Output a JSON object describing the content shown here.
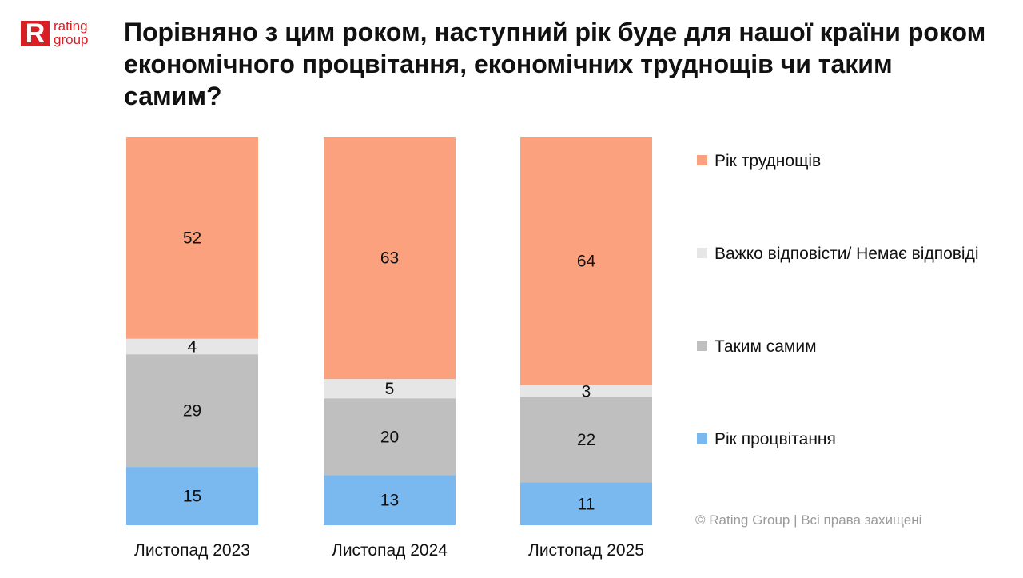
{
  "logo": {
    "mark": "R",
    "text": "rating\ngroup"
  },
  "title": "Порівняно з цим роком, наступний рік буде для нашої країни роком економічного процвітання, економічних труднощів чи таким самим?",
  "copyright": "© Rating Group | Всі права захищені",
  "chart_data": {
    "type": "bar",
    "stacked": true,
    "percent": true,
    "categories": [
      "Листопад 2023",
      "Листопад 2024",
      "Листопад 2025"
    ],
    "series": [
      {
        "name": "Рік процвітання",
        "color": "#7ab8f0",
        "values": [
          15,
          13,
          11
        ]
      },
      {
        "name": "Таким самим",
        "color": "#bfbfbf",
        "values": [
          29,
          20,
          22
        ]
      },
      {
        "name": "Важко відповісти/ Немає відповіді",
        "color": "#e6e6e6",
        "values": [
          4,
          5,
          3
        ]
      },
      {
        "name": "Рік труднощів",
        "color": "#fca17d",
        "values": [
          52,
          63,
          64
        ]
      }
    ],
    "legend_order": [
      "Рік труднощів",
      "Важко відповісти/ Немає відповіді",
      "Таким самим",
      "Рік процвітання"
    ],
    "legend_position": "right",
    "grid": false
  }
}
